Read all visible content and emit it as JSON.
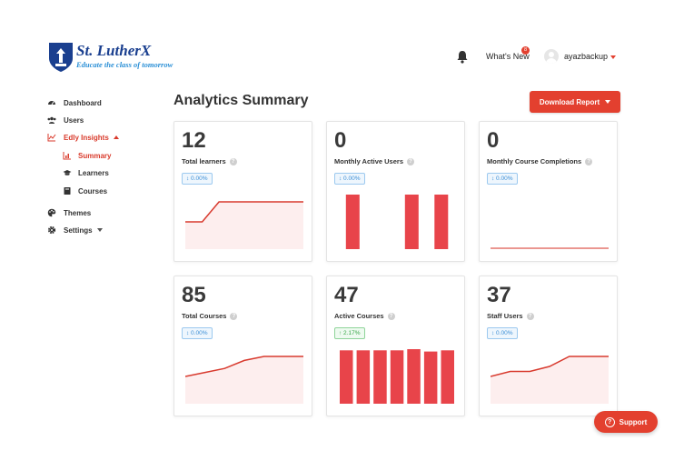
{
  "brand": {
    "name": "St. LutherX",
    "tagline": "Educate the class of tomorrow",
    "stars": "★★★★★"
  },
  "topbar": {
    "whats_new_label": "What's New",
    "whats_new_badge": "8",
    "username": "ayazbackup"
  },
  "sidebar": {
    "dashboard": "Dashboard",
    "users": "Users",
    "edly_insights": "Edly Insights",
    "summary": "Summary",
    "learners": "Learners",
    "courses": "Courses",
    "themes": "Themes",
    "settings": "Settings"
  },
  "main": {
    "title": "Analytics Summary",
    "download_label": "Download Report"
  },
  "cards": [
    {
      "value": "12",
      "label": "Total learners",
      "delta": "↕ 0.00%",
      "delta_dir": "neutral",
      "chart_type": "area",
      "values": [
        0,
        0,
        1,
        1,
        1,
        1,
        1,
        1
      ]
    },
    {
      "value": "0",
      "label": "Monthly Active Users",
      "delta": "↕ 0.00%",
      "delta_dir": "neutral",
      "chart_type": "bar",
      "values": [
        1,
        0,
        1,
        1
      ]
    },
    {
      "value": "0",
      "label": "Monthly Course Completions",
      "delta": "↕ 0.00%",
      "delta_dir": "neutral",
      "chart_type": "area",
      "values": [
        0,
        0,
        0,
        0,
        0,
        0,
        0
      ]
    },
    {
      "value": "85",
      "label": "Total Courses",
      "delta": "↕ 0.00%",
      "delta_dir": "neutral",
      "chart_type": "area",
      "values": [
        80,
        81,
        82,
        84,
        85,
        85,
        85
      ]
    },
    {
      "value": "47",
      "label": "Active Courses",
      "delta": "↑ 2.17%",
      "delta_dir": "up",
      "chart_type": "bar",
      "values": [
        46,
        46,
        46,
        46,
        47,
        45,
        46
      ]
    },
    {
      "value": "37",
      "label": "Staff Users",
      "delta": "↕ 0.00%",
      "delta_dir": "neutral",
      "chart_type": "area",
      "values": [
        35,
        35.5,
        35.5,
        36,
        37,
        37,
        37
      ]
    }
  ],
  "support": {
    "label": "Support"
  },
  "colors": {
    "accent": "#e3402f",
    "chart_line": "#d83a2e",
    "chart_fill": "#fdeeee",
    "bar": "#e8444a"
  }
}
